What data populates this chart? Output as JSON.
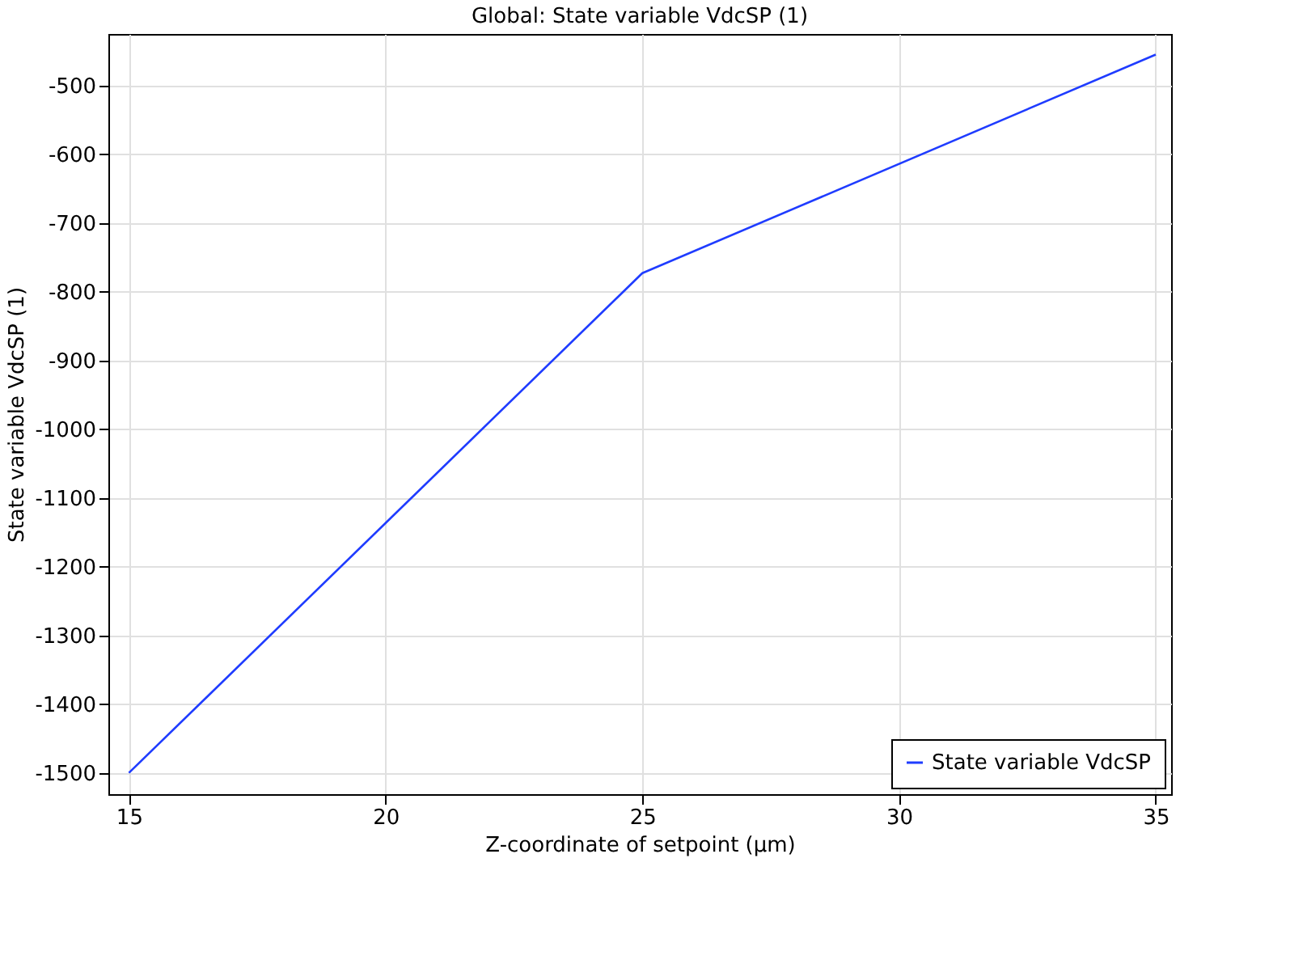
{
  "chart_data": {
    "type": "line",
    "title": "Global: State variable VdcSP (1)",
    "xlabel": "Z-coordinate of setpoint (µm)",
    "ylabel": "State variable VdcSP (1)",
    "x": [
      15,
      25,
      35
    ],
    "series": [
      {
        "name": "State variable VdcSP",
        "color": "#1f3cff",
        "values": [
          -1500,
          -773,
          -455
        ]
      }
    ],
    "xlim": [
      14.6,
      35.3
    ],
    "xticks": [
      15,
      20,
      25,
      30,
      35
    ],
    "ylim": [
      -1531,
      -425
    ],
    "yticks": [
      -1500,
      -1400,
      -1300,
      -1200,
      -1100,
      -1000,
      -900,
      -800,
      -700,
      -600,
      -500
    ],
    "grid": true,
    "legend": "bottom right",
    "marker": "none",
    "line_style": "solid"
  }
}
